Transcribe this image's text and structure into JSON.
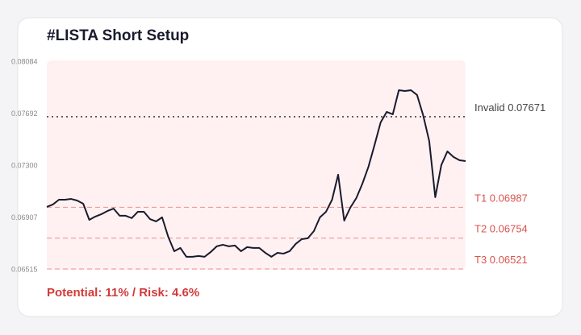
{
  "chart_data": {
    "type": "line",
    "title": "#LISTA Short Setup",
    "annotation": "Potential: 11% / Risk: 4.6%",
    "ylim": [
      0.06515,
      0.08084
    ],
    "yticks": [
      0.08084,
      0.07692,
      {
        "value": 0.073,
        "label": "0.07300"
      },
      0.06907,
      0.06515
    ],
    "series": [
      {
        "color": "#1a1a2e",
        "values": [
          0.0699,
          0.07008,
          0.07044,
          0.07044,
          0.0705,
          0.07038,
          0.07014,
          0.06892,
          0.06917,
          0.06935,
          0.06959,
          0.06977,
          0.06923,
          0.06923,
          0.06905,
          0.06953,
          0.06953,
          0.06898,
          0.0688,
          0.06911,
          0.06765,
          0.06655,
          0.0668,
          0.06613,
          0.06613,
          0.06619,
          0.06613,
          0.06649,
          0.06692,
          0.06704,
          0.06692,
          0.06698,
          0.06655,
          0.06686,
          0.0668,
          0.0668,
          0.06643,
          0.06613,
          0.06643,
          0.06637,
          0.06655,
          0.0671,
          0.06746,
          0.06753,
          0.06807,
          0.06911,
          0.06953,
          0.07044,
          0.07233,
          0.06886,
          0.06984,
          0.07057,
          0.07166,
          0.07294,
          0.07458,
          0.07628,
          0.07707,
          0.07689,
          0.07871,
          0.07865,
          0.07871,
          0.07835,
          0.07683,
          0.07488,
          0.07063,
          0.07306,
          0.07409,
          0.07367,
          0.07342,
          0.07336
        ]
      }
    ],
    "levels": [
      {
        "label": "Invalid",
        "value": 0.07671,
        "color": "#444444",
        "style": "dotted"
      },
      {
        "label": "T1",
        "value": 0.06987,
        "color": "#d9534f",
        "style": "dashed"
      },
      {
        "label": "T2",
        "value": 0.06754,
        "color": "#d9534f",
        "style": "dashed"
      },
      {
        "label": "T3",
        "value": 0.06521,
        "color": "#d9534f",
        "style": "dashed"
      }
    ]
  }
}
